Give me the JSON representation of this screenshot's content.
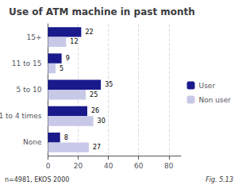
{
  "chart_data": {
    "type": "bar",
    "orientation": "horizontal",
    "title": "Use of ATM machine in past month",
    "categories": [
      "None",
      "1 to 4 times",
      "5 to 10",
      "11 to 15",
      "15+"
    ],
    "series": [
      {
        "name": "User",
        "color": "#1A1A8C",
        "values": [
          8,
          26,
          35,
          9,
          22
        ]
      },
      {
        "name": "Non user",
        "color": "#C8C8E8",
        "values": [
          27,
          30,
          25,
          5,
          12
        ]
      }
    ],
    "xlim": [
      0,
      88
    ],
    "xticks": [
      0,
      20,
      40,
      60,
      80
    ],
    "grid": true,
    "legend": "right",
    "data_labels": true,
    "annotations": [
      "n=4981, EKOS 2000",
      "Fig. 5.13"
    ]
  }
}
